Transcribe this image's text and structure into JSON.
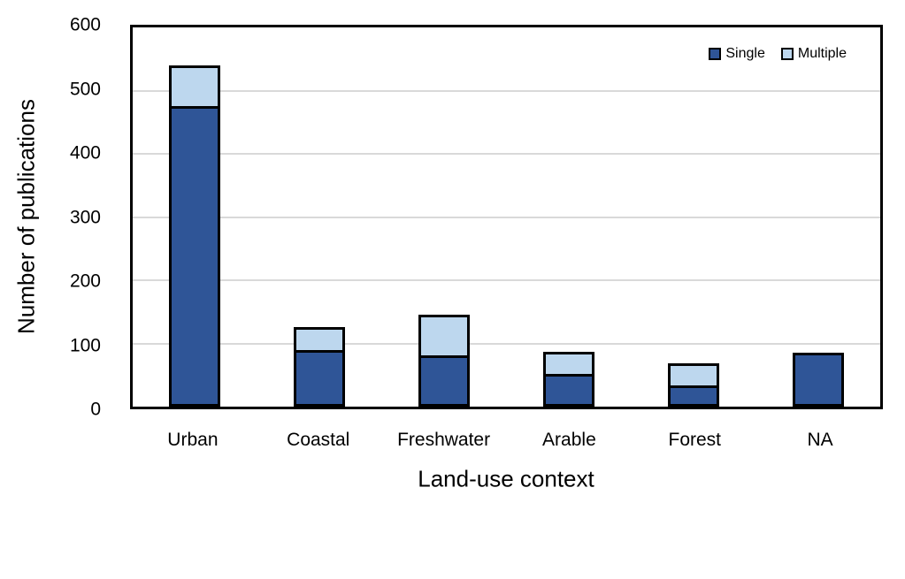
{
  "chart_data": {
    "type": "bar",
    "stacked": true,
    "title": "",
    "categories": [
      "Urban",
      "Coastal",
      "Freshwater",
      "Arable",
      "Forest",
      "NA"
    ],
    "series": [
      {
        "name": "Single",
        "color": "#2F5597",
        "values": [
          478,
          90,
          80,
          51,
          30,
          85
        ]
      },
      {
        "name": "Multiple",
        "color": "#BDD7EE",
        "values": [
          62,
          36,
          66,
          36,
          39,
          0
        ]
      }
    ],
    "totals": [
      540,
      126,
      146,
      87,
      69,
      85
    ],
    "xlabel": "Land-use context",
    "ylabel": "Number of publications",
    "ylim": [
      0,
      600
    ],
    "y_ticks": [
      0,
      100,
      200,
      300,
      400,
      500,
      600
    ],
    "grid": "horizontal",
    "gridline_color": "#D9D9D9",
    "axis_color": "#000000",
    "bar_border_color": "#000000",
    "legend_position": "top-right-inside"
  }
}
